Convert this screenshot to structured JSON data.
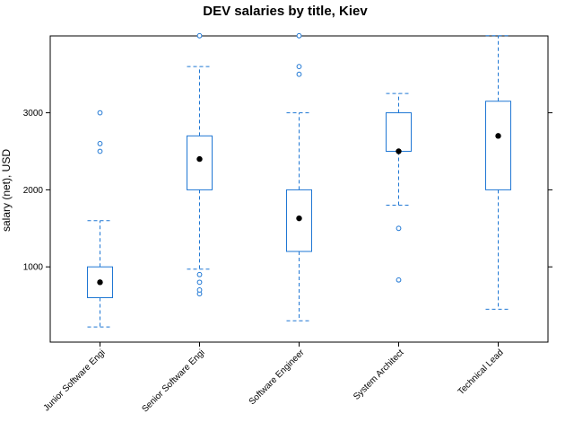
{
  "chart_data": {
    "type": "box",
    "title": "DEV salaries by title, Kiev",
    "xlabel": "",
    "ylabel": "salary (net), USD",
    "ylim": [
      0,
      4000
    ],
    "yticks": [
      1000,
      2000,
      3000
    ],
    "categories": [
      "Junior Software Engi",
      "Senior Software Engi",
      "Software Engineer",
      "System Architect",
      "Technical Lead"
    ],
    "boxes": [
      {
        "category": "Junior Software Engi",
        "whisker_low": 220,
        "q1": 600,
        "median": 800,
        "q3": 1000,
        "whisker_high": 1600,
        "outliers": [
          2500,
          2600,
          3000
        ]
      },
      {
        "category": "Senior Software Engi",
        "whisker_low": 970,
        "q1": 2000,
        "median": 2400,
        "q3": 2700,
        "whisker_high": 3600,
        "outliers": [
          650,
          700,
          800,
          900,
          4000
        ]
      },
      {
        "category": "Software Engineer",
        "whisker_low": 300,
        "q1": 1200,
        "median": 1630,
        "q3": 2000,
        "whisker_high": 3000,
        "outliers": [
          3500,
          3600,
          4000
        ]
      },
      {
        "category": "System Architect",
        "whisker_low": 1800,
        "q1": 2500,
        "median": 2500,
        "q3": 3000,
        "whisker_high": 3250,
        "outliers": [
          830,
          1500
        ]
      },
      {
        "category": "Technical Lead",
        "whisker_low": 450,
        "q1": 2000,
        "median": 2700,
        "q3": 3150,
        "whisker_high": 4000,
        "outliers": []
      }
    ],
    "grid": false,
    "colors": {
      "box": "#1f77d4",
      "median": "#000000",
      "frame": "#000000"
    }
  }
}
